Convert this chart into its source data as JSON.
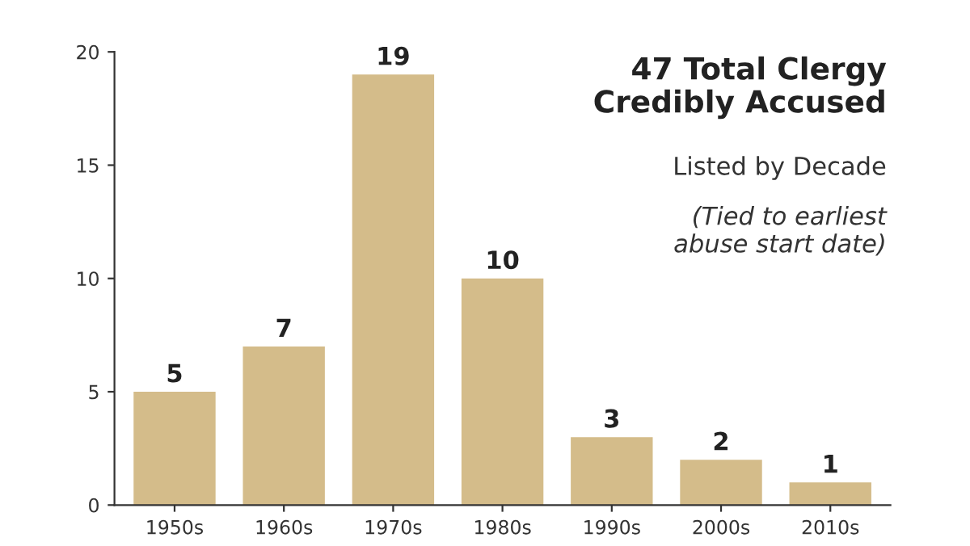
{
  "chart_data": {
    "type": "bar",
    "title": "47 Total Clergy\nCredibly Accused",
    "subtitle": "Listed by Decade",
    "annotations": [
      "(Tied to earliest\nabuse start date)"
    ],
    "categories": [
      "1950s",
      "1960s",
      "1970s",
      "1980s",
      "1990s",
      "2000s",
      "2010s"
    ],
    "values": [
      5,
      7,
      19,
      10,
      3,
      2,
      1
    ],
    "color": "#d4bc8a",
    "ylim": [
      0,
      20
    ],
    "yticks": [
      0,
      5,
      10,
      15,
      20
    ],
    "grid": false,
    "data_labels": true
  }
}
